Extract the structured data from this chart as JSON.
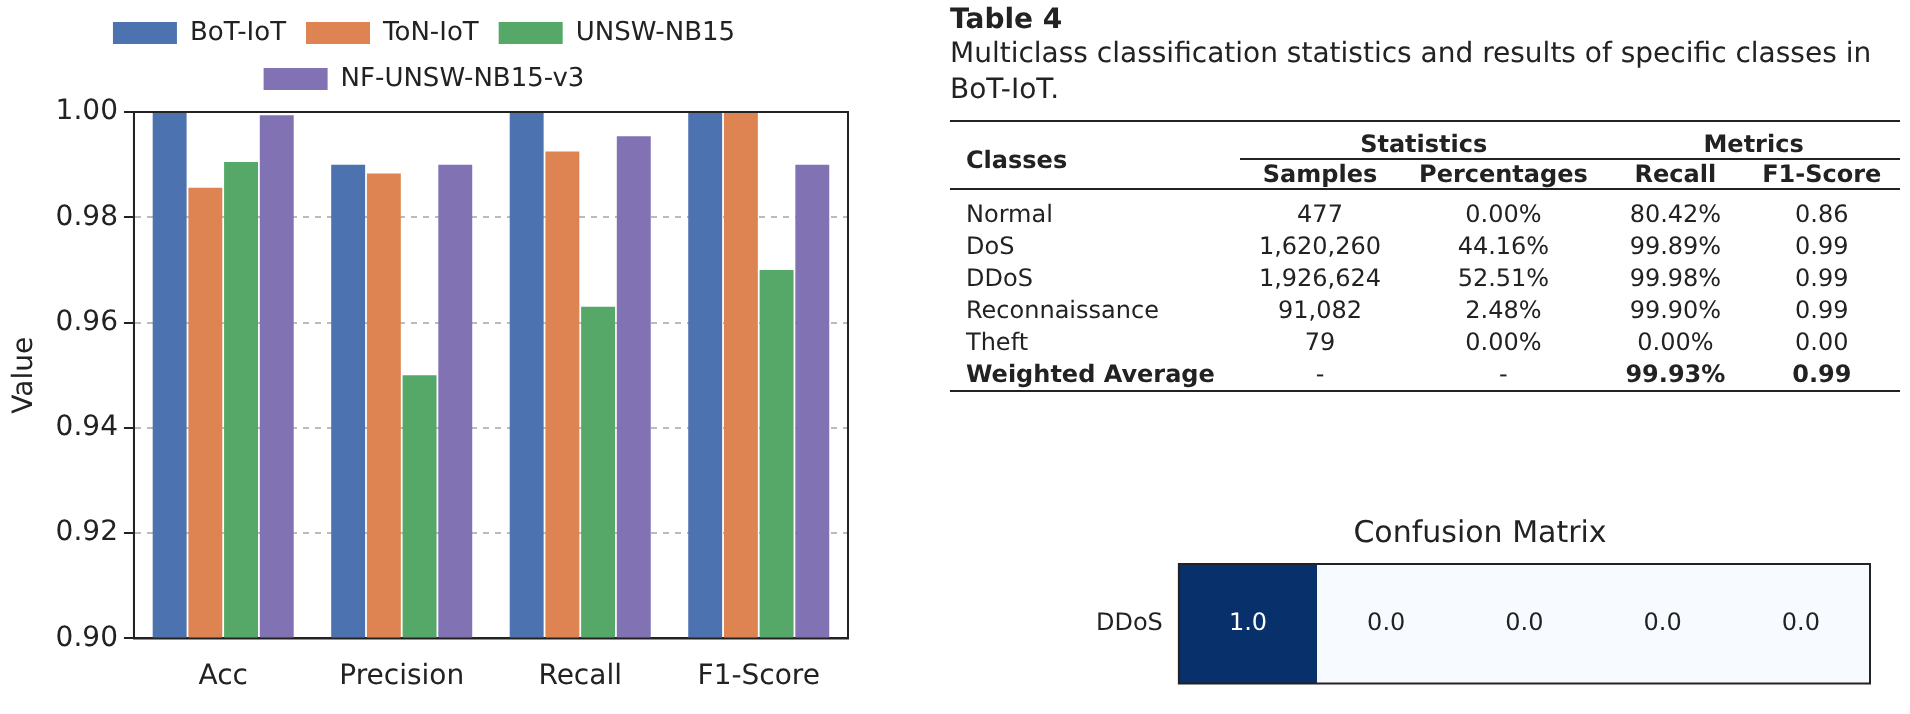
{
  "chart_data": [
    {
      "type": "bar",
      "ylabel": "Value",
      "categories": [
        "Acc",
        "Precision",
        "Recall",
        "F1-Score"
      ],
      "series": [
        {
          "name": "BoT-IoT",
          "color": "#4c72b0",
          "values": [
            1.0,
            0.99,
            1.0,
            1.0
          ]
        },
        {
          "name": "ToN-IoT",
          "color": "#dd8452",
          "values": [
            0.9856,
            0.9883,
            0.9925,
            1.0
          ]
        },
        {
          "name": "UNSW-NB15",
          "color": "#55a868",
          "values": [
            0.9905,
            0.95,
            0.963,
            0.97
          ]
        },
        {
          "name": "NF-UNSW-NB15-v3",
          "color": "#8172b3",
          "values": [
            0.9994,
            0.99,
            0.9954,
            0.99
          ]
        }
      ],
      "ylim": [
        0.9,
        1.0
      ],
      "yticks": [
        {
          "value": 0.9,
          "label": "0.90"
        },
        {
          "value": 0.92,
          "label": "0.92"
        },
        {
          "value": 0.94,
          "label": "0.94"
        },
        {
          "value": 0.96,
          "label": "0.96"
        },
        {
          "value": 0.98,
          "label": "0.98"
        },
        {
          "value": 1.0,
          "label": "1.00"
        }
      ],
      "grid": "y",
      "legend": "top"
    },
    {
      "type": "other",
      "title": "Table 4",
      "subtitle": "Multiclass classification statistics and results of specific classes in BoT-IoT.",
      "annotations": [
        "Classes",
        "Statistics",
        "Metrics"
      ],
      "categories": [
        "Samples",
        "Percentages",
        "Recall",
        "F1-Score"
      ],
      "y_categories": [
        "Normal",
        "DoS",
        "DDoS",
        "Reconnaissance",
        "Theft",
        "Weighted Average"
      ],
      "cell_labels": [
        [
          "477",
          "0.00%",
          "80.42%",
          "0.86"
        ],
        [
          "1,620,260",
          "44.16%",
          "99.89%",
          "0.99"
        ],
        [
          "1,926,624",
          "52.51%",
          "99.98%",
          "0.99"
        ],
        [
          "91,082",
          "2.48%",
          "99.90%",
          "0.99"
        ],
        [
          "79",
          "0.00%",
          "0.00%",
          "0.00"
        ],
        [
          "-",
          "-",
          "99.93%",
          "0.99"
        ]
      ]
    },
    {
      "type": "heatmap",
      "title": "Confusion Matrix",
      "categories": [
        null,
        null,
        null,
        null,
        null
      ],
      "y_categories": [
        "DDoS"
      ],
      "cells": [
        [
          1.0,
          0.0,
          0.0,
          0.0,
          0.0
        ]
      ],
      "cell_labels": [
        [
          "1.0",
          "0.0",
          "0.0",
          "0.0",
          "0.0"
        ]
      ],
      "tick_labels": "y"
    }
  ]
}
